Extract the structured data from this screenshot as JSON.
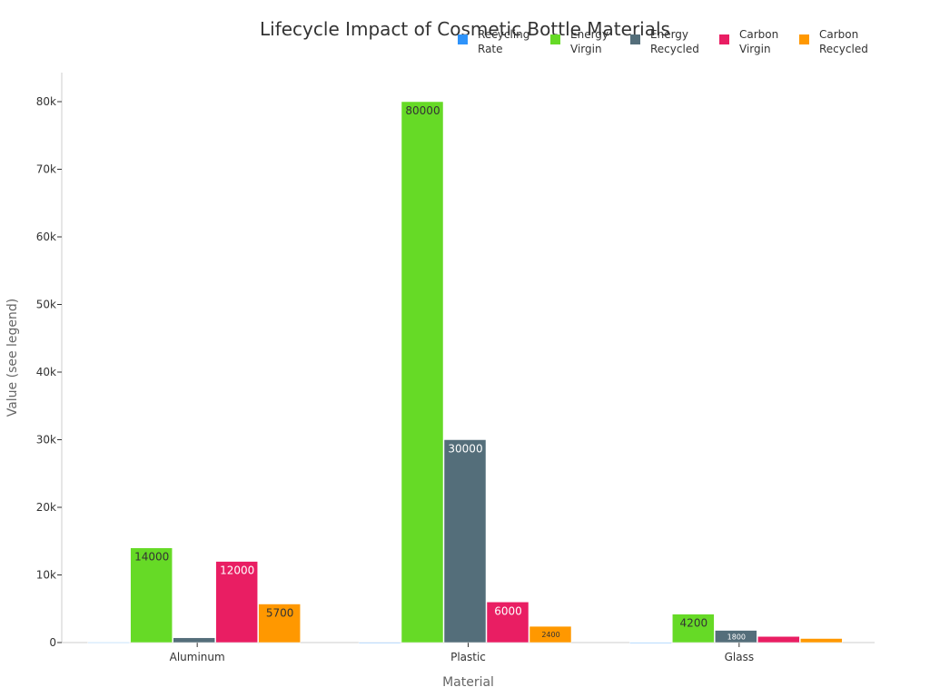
{
  "chart_data": {
    "type": "bar",
    "title": "Lifecycle Impact of Cosmetic Bottle Materials",
    "xlabel": "Material",
    "ylabel": "Value (see legend)",
    "categories": [
      "Aluminum",
      "Plastic",
      "Glass"
    ],
    "ylim": [
      0,
      84000
    ],
    "yticks": [
      0,
      10000,
      20000,
      30000,
      40000,
      50000,
      60000,
      70000,
      80000
    ],
    "ytick_labels": [
      "0",
      "10k",
      "20k",
      "30k",
      "40k",
      "50k",
      "60k",
      "70k",
      "80k"
    ],
    "legend_position": "top-right",
    "grid": false,
    "series": [
      {
        "name": "Recycling Rate",
        "color": "#2E93FA",
        "values": [
          50,
          9,
          30
        ],
        "labels": [
          "",
          "",
          ""
        ],
        "label_color": "#ffffff"
      },
      {
        "name": "Energy Virgin",
        "color": "#66DA26",
        "values": [
          14000,
          80000,
          4200
        ],
        "labels": [
          "14000",
          "80000",
          "4200"
        ],
        "label_color": "#333333"
      },
      {
        "name": "Energy Recycled",
        "color": "#546E7A",
        "values": [
          700,
          30000,
          1800
        ],
        "labels": [
          "",
          "30000",
          "1800"
        ],
        "label_color": "#ffffff"
      },
      {
        "name": "Carbon Virgin",
        "color": "#E91E63",
        "values": [
          12000,
          6000,
          900
        ],
        "labels": [
          "12000",
          "6000",
          ""
        ],
        "label_color": "#ffffff"
      },
      {
        "name": "Carbon Recycled",
        "color": "#FF9800",
        "values": [
          5700,
          2400,
          600
        ],
        "labels": [
          "5700",
          "2400",
          ""
        ],
        "label_color": "#333333"
      }
    ]
  }
}
